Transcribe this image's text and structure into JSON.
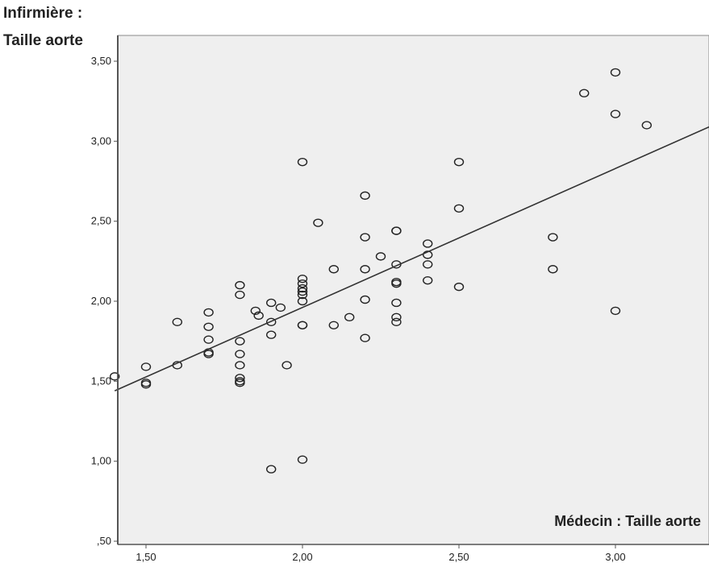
{
  "chart_data": {
    "type": "scatter",
    "ylabel_lines": [
      "Infirmière :",
      "Taille aorte"
    ],
    "xlabel": "Médecin : Taille aorte",
    "xlim": [
      1.4,
      3.3
    ],
    "ylim": [
      0.5,
      3.6
    ],
    "x_ticks": [
      {
        "value": 1.5,
        "label": "1,50"
      },
      {
        "value": 2.0,
        "label": "2,00"
      },
      {
        "value": 2.5,
        "label": "2,50"
      },
      {
        "value": 3.0,
        "label": "3,00"
      }
    ],
    "y_ticks": [
      {
        "value": 0.5,
        "label": ",50"
      },
      {
        "value": 1.0,
        "label": "1,00"
      },
      {
        "value": 1.5,
        "label": "1,50"
      },
      {
        "value": 2.0,
        "label": "2,00"
      },
      {
        "value": 2.5,
        "label": "2,50"
      },
      {
        "value": 3.0,
        "label": "3,00"
      },
      {
        "value": 3.5,
        "label": "3,50"
      }
    ],
    "fit_line": {
      "x": [
        1.4,
        3.3
      ],
      "y": [
        1.44,
        3.09
      ]
    },
    "points": [
      [
        1.4,
        1.53
      ],
      [
        1.5,
        1.59
      ],
      [
        1.5,
        1.49
      ],
      [
        1.5,
        1.48
      ],
      [
        1.6,
        1.87
      ],
      [
        1.6,
        1.6
      ],
      [
        1.7,
        1.93
      ],
      [
        1.7,
        1.84
      ],
      [
        1.7,
        1.76
      ],
      [
        1.7,
        1.68
      ],
      [
        1.7,
        1.67
      ],
      [
        1.8,
        2.1
      ],
      [
        1.8,
        2.04
      ],
      [
        1.8,
        1.75
      ],
      [
        1.8,
        1.67
      ],
      [
        1.8,
        1.6
      ],
      [
        1.8,
        1.52
      ],
      [
        1.8,
        1.5
      ],
      [
        1.8,
        1.49
      ],
      [
        1.85,
        1.94
      ],
      [
        1.86,
        1.91
      ],
      [
        1.9,
        1.99
      ],
      [
        1.9,
        1.87
      ],
      [
        1.9,
        1.79
      ],
      [
        1.9,
        0.95
      ],
      [
        1.93,
        1.96
      ],
      [
        1.95,
        1.6
      ],
      [
        2.0,
        2.87
      ],
      [
        2.0,
        2.14
      ],
      [
        2.0,
        2.11
      ],
      [
        2.0,
        2.08
      ],
      [
        2.0,
        2.06
      ],
      [
        2.0,
        2.04
      ],
      [
        2.0,
        2.0
      ],
      [
        2.0,
        1.85
      ],
      [
        2.0,
        1.85
      ],
      [
        2.0,
        1.01
      ],
      [
        2.05,
        2.49
      ],
      [
        2.1,
        2.2
      ],
      [
        2.1,
        1.85
      ],
      [
        2.15,
        1.9
      ],
      [
        2.2,
        2.66
      ],
      [
        2.2,
        2.4
      ],
      [
        2.2,
        2.2
      ],
      [
        2.2,
        2.01
      ],
      [
        2.2,
        1.77
      ],
      [
        2.25,
        2.28
      ],
      [
        2.3,
        2.44
      ],
      [
        2.3,
        2.44
      ],
      [
        2.3,
        2.23
      ],
      [
        2.3,
        2.12
      ],
      [
        2.3,
        2.11
      ],
      [
        2.3,
        1.99
      ],
      [
        2.3,
        1.9
      ],
      [
        2.3,
        1.87
      ],
      [
        2.4,
        2.36
      ],
      [
        2.4,
        2.29
      ],
      [
        2.4,
        2.23
      ],
      [
        2.4,
        2.13
      ],
      [
        2.5,
        2.87
      ],
      [
        2.5,
        2.58
      ],
      [
        2.5,
        2.09
      ],
      [
        2.8,
        2.4
      ],
      [
        2.8,
        2.2
      ],
      [
        2.9,
        3.3
      ],
      [
        3.0,
        3.43
      ],
      [
        3.0,
        3.17
      ],
      [
        3.0,
        1.94
      ],
      [
        3.1,
        3.1
      ]
    ]
  },
  "colors": {
    "plot_bg": "#efefef",
    "axis": "#555555",
    "marker": "#222222",
    "line": "#333333",
    "text": "#222222"
  }
}
